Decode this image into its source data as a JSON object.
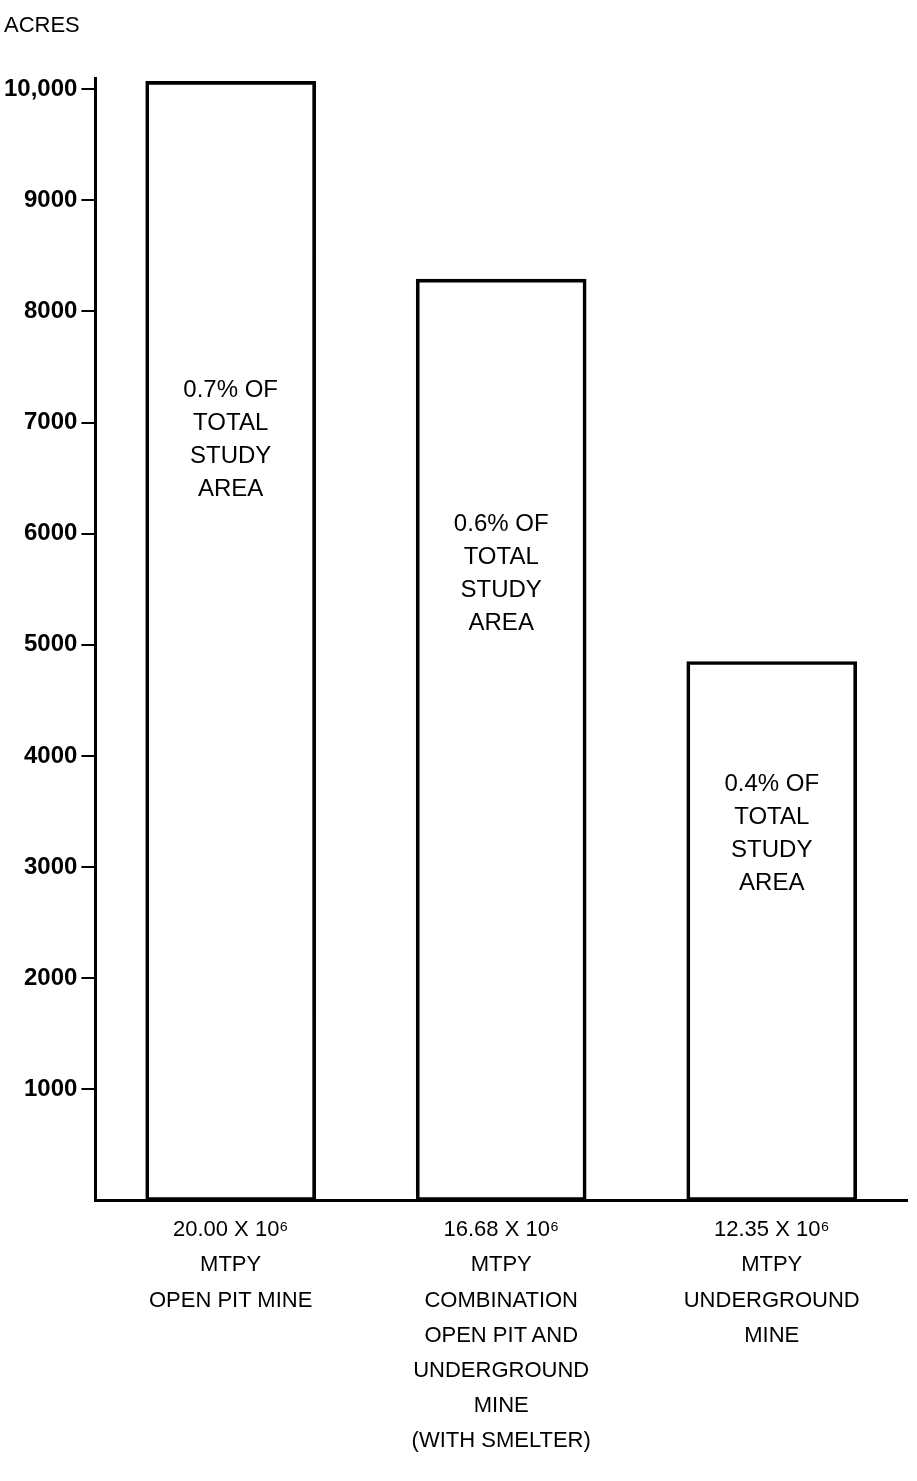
{
  "chart_data": {
    "type": "bar",
    "ylabel": "ACRES",
    "categories": [
      "20.00 X 10⁶\nMTPY\nOPEN PIT MINE",
      "16.68 X 10⁶\nMTPY\nCOMBINATION\nOPEN PIT AND\nUNDERGROUND\nMINE\n(WITH SMELTER)",
      "12.35 X 10⁶\nMTPY\nUNDERGROUND\nMINE"
    ],
    "values": [
      10070,
      8290,
      4850
    ],
    "color": "#000000",
    "ylim": [
      0,
      10100
    ],
    "yticks": [
      1000,
      2000,
      3000,
      4000,
      5000,
      6000,
      7000,
      8000,
      9000,
      {
        "value": 10000,
        "label": "10,000"
      }
    ],
    "grid": false,
    "annotations": [
      "0.7% OF\nTOTAL\nSTUDY\nAREA",
      "0.6% OF\nTOTAL\nSTUDY\nAREA",
      "0.4% OF\nTOTAL\nSTUDY\nAREA"
    ]
  }
}
